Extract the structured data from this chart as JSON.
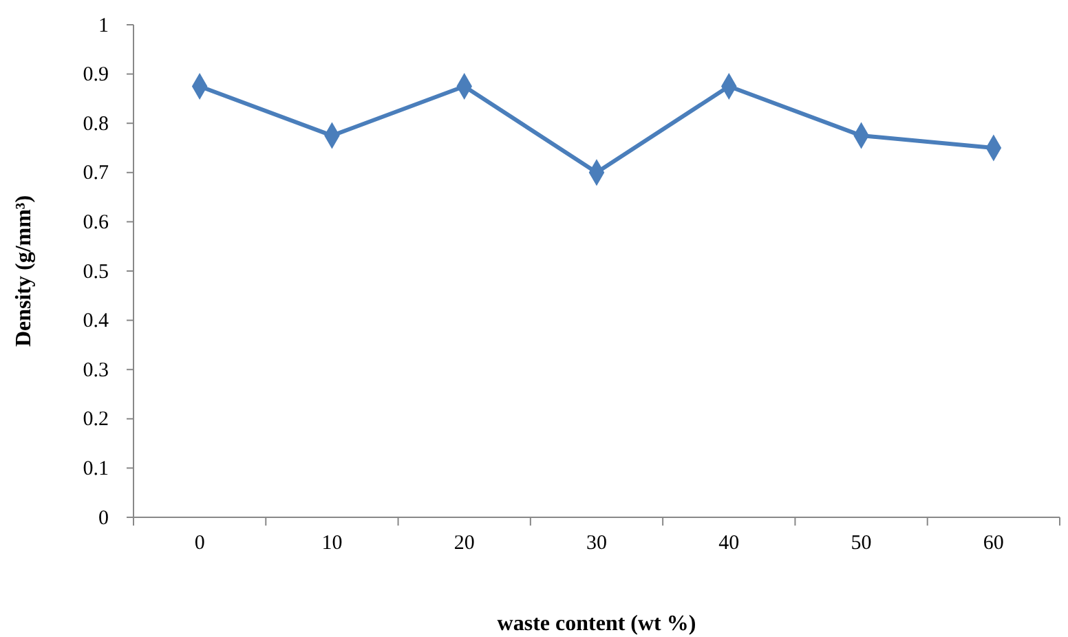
{
  "chart_data": {
    "type": "line",
    "xlabel": "waste  content (wt %)",
    "ylabel": "Density (g/mm³)",
    "categories": [
      "0",
      "10",
      "20",
      "30",
      "40",
      "50",
      "60"
    ],
    "series": [
      {
        "color": "#4a7ebb",
        "values": [
          0.875,
          0.775,
          0.875,
          0.7,
          0.875,
          0.775,
          0.75
        ]
      }
    ],
    "ylim": [
      0,
      1
    ],
    "yticks": [
      0,
      0.1,
      0.2,
      0.3,
      0.4,
      0.5,
      0.6,
      0.7,
      0.8,
      0.9,
      1
    ],
    "marker": "diamond",
    "line_style": "solid"
  }
}
